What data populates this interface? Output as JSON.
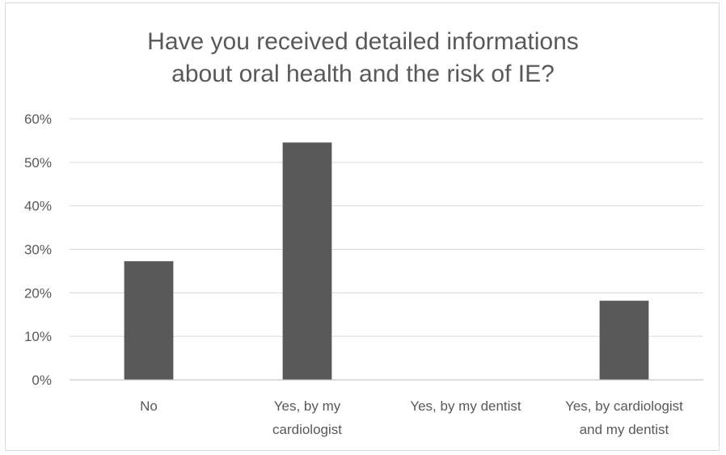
{
  "chart_data": {
    "type": "bar",
    "title": "Have you received detailed informations\nabout oral health and the risk of IE?",
    "categories": [
      [
        "No"
      ],
      [
        "Yes, by my",
        "cardiologist"
      ],
      [
        "Yes, by my dentist"
      ],
      [
        "Yes, by cardiologist",
        "and my dentist"
      ]
    ],
    "values": [
      27.27,
      54.55,
      0,
      18.18
    ],
    "ylim": [
      0,
      60
    ],
    "yticks": [
      0,
      10,
      20,
      30,
      40,
      50,
      60
    ],
    "ytick_labels": [
      "0%",
      "10%",
      "20%",
      "30%",
      "40%",
      "50%",
      "60%"
    ],
    "grid": true,
    "bar_color": "#595959",
    "xlabel": "",
    "ylabel": ""
  }
}
